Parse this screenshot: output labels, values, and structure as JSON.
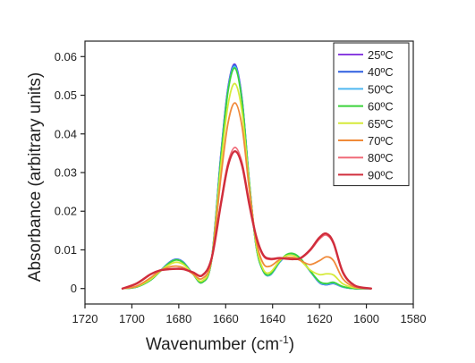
{
  "chart_data": {
    "type": "line",
    "xlabel_main": "Wavenumber (cm",
    "xlabel_sup": "-1",
    "xlabel_end": ")",
    "ylabel": "Absorbance (arbitrary units)",
    "xlim": [
      1720,
      1580
    ],
    "ylim": [
      -0.004,
      0.064
    ],
    "xticks": [
      1720,
      1700,
      1680,
      1660,
      1640,
      1620,
      1600,
      1580
    ],
    "xtick_labels": [
      "1720",
      "1700",
      "1680",
      "1660",
      "1640",
      "1620",
      "1600",
      "1580"
    ],
    "yticks": [
      0,
      0.01,
      0.02,
      0.03,
      0.04,
      0.05,
      0.06
    ],
    "ytick_labels": [
      "0",
      "0.01",
      "0.02",
      "0.03",
      "0.04",
      "0.05",
      "0.06"
    ],
    "legend_position": "top-right",
    "series": [
      {
        "name": "25ºC",
        "color": "#8a3fe0",
        "x": [
          1704,
          1698,
          1692,
          1688,
          1684,
          1681,
          1678,
          1674,
          1670,
          1666,
          1662,
          1659,
          1656,
          1653,
          1650,
          1647,
          1644,
          1641,
          1637,
          1634,
          1631,
          1628,
          1624,
          1620,
          1617,
          1614,
          1610,
          1605,
          1598
        ],
        "y": [
          0,
          0.0004,
          0.0022,
          0.0045,
          0.0068,
          0.0076,
          0.0068,
          0.0038,
          0.0016,
          0.0075,
          0.035,
          0.052,
          0.058,
          0.049,
          0.028,
          0.011,
          0.0045,
          0.0035,
          0.0068,
          0.0085,
          0.0088,
          0.0075,
          0.0045,
          0.0015,
          0.001,
          0.0013,
          0.0004,
          0,
          0
        ]
      },
      {
        "name": "40ºC",
        "color": "#2e5fe0",
        "x": [
          1704,
          1698,
          1692,
          1688,
          1684,
          1681,
          1678,
          1674,
          1670,
          1666,
          1662,
          1659,
          1656,
          1653,
          1650,
          1647,
          1644,
          1641,
          1637,
          1634,
          1631,
          1628,
          1624,
          1620,
          1617,
          1614,
          1610,
          1605,
          1598
        ],
        "y": [
          0,
          0.0004,
          0.0022,
          0.0045,
          0.0068,
          0.0076,
          0.0068,
          0.0038,
          0.0016,
          0.0075,
          0.0348,
          0.0518,
          0.0578,
          0.0488,
          0.028,
          0.011,
          0.0045,
          0.0035,
          0.0068,
          0.0085,
          0.0088,
          0.0075,
          0.0045,
          0.0015,
          0.001,
          0.0013,
          0.0004,
          0,
          0
        ]
      },
      {
        "name": "50ºC",
        "color": "#4fb8f0",
        "x": [
          1704,
          1698,
          1692,
          1688,
          1684,
          1681,
          1678,
          1674,
          1670,
          1666,
          1662,
          1659,
          1656,
          1653,
          1650,
          1647,
          1644,
          1641,
          1637,
          1634,
          1631,
          1628,
          1624,
          1620,
          1617,
          1614,
          1610,
          1605,
          1598
        ],
        "y": [
          0,
          0.0004,
          0.0022,
          0.0045,
          0.0067,
          0.0075,
          0.0067,
          0.0038,
          0.0016,
          0.0075,
          0.0345,
          0.0515,
          0.0574,
          0.0486,
          0.028,
          0.011,
          0.0045,
          0.0035,
          0.0068,
          0.0085,
          0.0088,
          0.0075,
          0.0045,
          0.0016,
          0.0011,
          0.0014,
          0.0004,
          0,
          0
        ]
      },
      {
        "name": "60ºC",
        "color": "#3ad23a",
        "x": [
          1704,
          1698,
          1692,
          1688,
          1684,
          1681,
          1678,
          1674,
          1670,
          1666,
          1662,
          1659,
          1656,
          1653,
          1650,
          1647,
          1644,
          1641,
          1637,
          1634,
          1631,
          1628,
          1624,
          1620,
          1617,
          1614,
          1610,
          1605,
          1598
        ],
        "y": [
          0,
          0.0004,
          0.0022,
          0.0044,
          0.0066,
          0.0074,
          0.0066,
          0.0038,
          0.0016,
          0.0074,
          0.034,
          0.051,
          0.057,
          0.0482,
          0.028,
          0.011,
          0.0046,
          0.0037,
          0.007,
          0.0088,
          0.009,
          0.0077,
          0.0046,
          0.0018,
          0.0013,
          0.0016,
          0.0005,
          0,
          0
        ]
      },
      {
        "name": "65ºC",
        "color": "#d6ea3a",
        "x": [
          1704,
          1698,
          1692,
          1688,
          1684,
          1681,
          1678,
          1674,
          1670,
          1666,
          1662,
          1659,
          1656,
          1653,
          1650,
          1647,
          1644,
          1641,
          1637,
          1634,
          1631,
          1628,
          1624,
          1620,
          1617,
          1614,
          1610,
          1605,
          1598
        ],
        "y": [
          0,
          0.0005,
          0.0024,
          0.0045,
          0.0062,
          0.0068,
          0.0062,
          0.0038,
          0.002,
          0.0075,
          0.032,
          0.0475,
          0.053,
          0.0455,
          0.027,
          0.0115,
          0.005,
          0.0042,
          0.0072,
          0.0085,
          0.0085,
          0.0072,
          0.0048,
          0.0036,
          0.0038,
          0.0035,
          0.0012,
          0.0002,
          0
        ]
      },
      {
        "name": "70ºC",
        "color": "#f08a3a",
        "x": [
          1704,
          1698,
          1692,
          1688,
          1684,
          1681,
          1678,
          1674,
          1670,
          1666,
          1662,
          1659,
          1656,
          1653,
          1650,
          1647,
          1644,
          1641,
          1637,
          1634,
          1631,
          1628,
          1624,
          1620,
          1617,
          1614,
          1610,
          1605,
          1598
        ],
        "y": [
          0,
          0.0006,
          0.0028,
          0.0046,
          0.0056,
          0.0058,
          0.0054,
          0.0038,
          0.0026,
          0.0075,
          0.029,
          0.0428,
          0.048,
          0.0418,
          0.026,
          0.0125,
          0.0065,
          0.0058,
          0.0075,
          0.008,
          0.008,
          0.0072,
          0.0062,
          0.0072,
          0.0082,
          0.0072,
          0.0025,
          0.0004,
          0
        ]
      },
      {
        "name": "80ºC",
        "color": "#f06a78",
        "x": [
          1704,
          1698,
          1692,
          1688,
          1684,
          1681,
          1678,
          1674,
          1670,
          1666,
          1662,
          1659,
          1656,
          1653,
          1650,
          1647,
          1644,
          1641,
          1637,
          1634,
          1631,
          1628,
          1624,
          1620,
          1617,
          1614,
          1610,
          1605,
          1598
        ],
        "y": [
          0,
          0.0012,
          0.0036,
          0.0047,
          0.0051,
          0.0052,
          0.0051,
          0.0042,
          0.0033,
          0.0078,
          0.0225,
          0.0325,
          0.0365,
          0.0325,
          0.0225,
          0.0135,
          0.0085,
          0.0075,
          0.0078,
          0.0077,
          0.0076,
          0.0078,
          0.0098,
          0.0128,
          0.0138,
          0.0115,
          0.004,
          0.0007,
          0
        ]
      },
      {
        "name": "90ºC",
        "color": "#d02d3c",
        "x": [
          1704,
          1698,
          1692,
          1688,
          1684,
          1681,
          1678,
          1674,
          1670,
          1666,
          1662,
          1659,
          1656,
          1653,
          1650,
          1647,
          1644,
          1641,
          1637,
          1634,
          1631,
          1628,
          1624,
          1620,
          1617,
          1614,
          1610,
          1605,
          1598
        ],
        "y": [
          0,
          0.0013,
          0.0037,
          0.0047,
          0.005,
          0.0051,
          0.005,
          0.0042,
          0.0034,
          0.0078,
          0.022,
          0.0318,
          0.0355,
          0.0318,
          0.022,
          0.0135,
          0.0087,
          0.0077,
          0.0079,
          0.0077,
          0.0076,
          0.0079,
          0.01,
          0.0132,
          0.0142,
          0.0118,
          0.0042,
          0.0008,
          0
        ]
      }
    ]
  }
}
